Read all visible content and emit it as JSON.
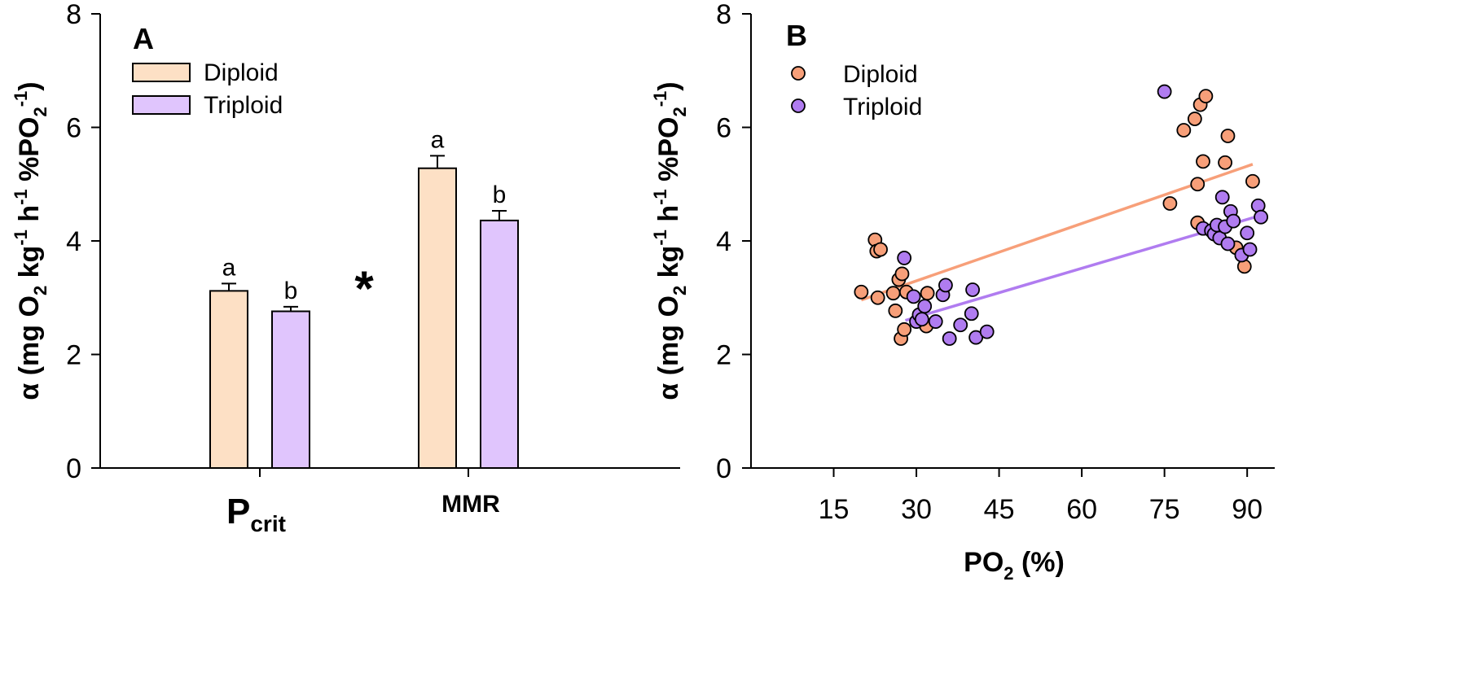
{
  "chart_data": [
    {
      "panel": "A",
      "type": "bar",
      "categories": [
        "P",
        "MMR"
      ],
      "category_subscripts": [
        "crit",
        ""
      ],
      "ylabel": {
        "pre": "α (mg O",
        "s1": "2",
        "mid1": " kg",
        "s2": "-1",
        "mid2": " h",
        "s3": "-1",
        "mid3": " %PO",
        "s4": "2",
        "s5": "-1",
        "post": ")"
      },
      "ylim": [
        0,
        8
      ],
      "yticks": [
        0,
        2,
        4,
        6,
        8
      ],
      "legend": {
        "position": "top-left"
      },
      "series": [
        {
          "name": "Diploid",
          "color": "#fde0c5",
          "values": [
            3.12,
            5.28
          ],
          "errors": [
            0.13,
            0.22
          ],
          "letters": [
            "a",
            "a"
          ]
        },
        {
          "name": "Triploid",
          "color": "#e0c5fd",
          "values": [
            2.76,
            4.36
          ],
          "errors": [
            0.08,
            0.17
          ],
          "letters": [
            "b",
            "b"
          ]
        }
      ],
      "annotation": "*"
    },
    {
      "panel": "B",
      "type": "scatter",
      "xlabel": {
        "pre": "PO",
        "sub": "2",
        "post": " (%)"
      },
      "ylabel": {
        "pre": "α (mg O",
        "s1": "2",
        "mid1": " kg",
        "s2": "-1",
        "mid2": " h",
        "s3": "-1",
        "mid3": " %PO",
        "s4": "2",
        "s5": "-1",
        "post": ")"
      },
      "xlim": [
        0,
        95
      ],
      "ylim": [
        0,
        8
      ],
      "xticks": [
        15,
        30,
        45,
        60,
        75,
        90
      ],
      "yticks": [
        0,
        2,
        4,
        6,
        8
      ],
      "legend": {
        "position": "top-left"
      },
      "series": [
        {
          "name": "Diploid",
          "color": "#f79f79",
          "points": [
            [
              20.0,
              3.1
            ],
            [
              22.5,
              4.02
            ],
            [
              22.8,
              3.82
            ],
            [
              23.0,
              3.0
            ],
            [
              23.5,
              3.85
            ],
            [
              25.8,
              3.08
            ],
            [
              26.2,
              2.77
            ],
            [
              26.8,
              3.32
            ],
            [
              27.2,
              2.28
            ],
            [
              27.4,
              3.42
            ],
            [
              27.8,
              2.44
            ],
            [
              28.2,
              3.1
            ],
            [
              31.8,
              2.5
            ],
            [
              32.0,
              3.08
            ],
            [
              76.0,
              4.66
            ],
            [
              78.5,
              5.95
            ],
            [
              80.5,
              6.15
            ],
            [
              81.0,
              4.32
            ],
            [
              81.0,
              5.0
            ],
            [
              81.5,
              6.4
            ],
            [
              82.0,
              5.4
            ],
            [
              82.5,
              6.55
            ],
            [
              86.0,
              5.38
            ],
            [
              86.5,
              5.85
            ],
            [
              88.0,
              3.88
            ],
            [
              89.5,
              3.55
            ],
            [
              91.0,
              5.05
            ]
          ],
          "fit": {
            "x": [
              20,
              91
            ],
            "y": [
              2.96,
              5.35
            ]
          }
        },
        {
          "name": "Triploid",
          "color": "#b07cf0",
          "points": [
            [
              27.8,
              3.7
            ],
            [
              29.5,
              3.02
            ],
            [
              30.0,
              2.58
            ],
            [
              30.5,
              2.7
            ],
            [
              31.0,
              2.62
            ],
            [
              31.5,
              2.85
            ],
            [
              33.5,
              2.58
            ],
            [
              34.8,
              3.05
            ],
            [
              35.3,
              3.22
            ],
            [
              36.0,
              2.28
            ],
            [
              38.0,
              2.52
            ],
            [
              40.0,
              2.72
            ],
            [
              40.2,
              3.14
            ],
            [
              40.8,
              2.3
            ],
            [
              42.8,
              2.4
            ],
            [
              75.0,
              6.63
            ],
            [
              82.0,
              4.22
            ],
            [
              83.5,
              4.18
            ],
            [
              84.0,
              4.12
            ],
            [
              84.5,
              4.28
            ],
            [
              85.0,
              4.05
            ],
            [
              85.5,
              4.77
            ],
            [
              86.0,
              4.25
            ],
            [
              86.5,
              3.95
            ],
            [
              87.0,
              4.52
            ],
            [
              87.5,
              4.35
            ],
            [
              89.0,
              3.75
            ],
            [
              90.0,
              4.14
            ],
            [
              90.5,
              3.85
            ],
            [
              92.0,
              4.62
            ],
            [
              92.5,
              4.42
            ]
          ],
          "fit": {
            "x": [
              28,
              92.5
            ],
            "y": [
              2.6,
              4.45
            ]
          }
        }
      ]
    }
  ]
}
